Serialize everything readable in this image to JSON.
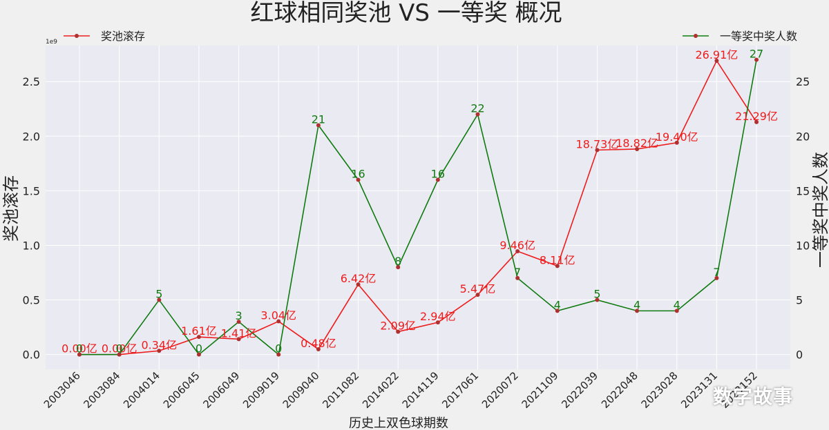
{
  "chart_data": {
    "type": "line",
    "title": "红球相同奖池 VS 一等奖 概况",
    "xlabel": "历史上双色球期数",
    "ylabel_left": "奖池滚存",
    "ylabel_right": "一等奖中奖人数",
    "left_axis_offset_label": "1e9",
    "categories": [
      "2003046",
      "2003084",
      "2004014",
      "2006045",
      "2006049",
      "2009019",
      "2009040",
      "2011082",
      "2014022",
      "2014119",
      "2017061",
      "2020072",
      "2021109",
      "2022039",
      "2022048",
      "2023028",
      "2023131",
      "2023152"
    ],
    "ylim_left": [
      -0.135,
      2.83
    ],
    "yticks_left": [
      "0.0",
      "0.5",
      "1.0",
      "1.5",
      "2.0",
      "2.5"
    ],
    "ylim_right": [
      -1.35,
      28.3
    ],
    "yticks_right": [
      "0",
      "5",
      "10",
      "15",
      "20",
      "25"
    ],
    "grid": true,
    "legend": {
      "left": "top-left",
      "right": "top-right"
    },
    "series": [
      {
        "name": "奖池滚存",
        "axis": "left",
        "color": "#ee1c1c",
        "values": [
          0.0,
          0.0,
          0.034,
          0.161,
          0.141,
          0.304,
          0.048,
          0.642,
          0.209,
          0.294,
          0.547,
          0.946,
          0.811,
          1.873,
          1.882,
          1.94,
          2.691,
          2.129
        ],
        "labels": [
          "0.00亿",
          "0.00亿",
          "0.34亿",
          "1.61亿",
          "1.41亿",
          "3.04亿",
          "0.48亿",
          "6.42亿",
          "2.09亿",
          "2.94亿",
          "5.47亿",
          "9.46亿",
          "8.11亿",
          "18.73亿",
          "18.82亿",
          "19.40亿",
          "26.91亿",
          "21.29亿"
        ]
      },
      {
        "name": "一等奖中奖人数",
        "axis": "right",
        "color": "#0f7a0f",
        "values": [
          0,
          0,
          5,
          0,
          3,
          0,
          21,
          16,
          8,
          16,
          22,
          7,
          4,
          5,
          4,
          4,
          7,
          27
        ],
        "labels": [
          "0",
          "0",
          "5",
          "0",
          "3",
          "0",
          "21",
          "16",
          "8",
          "16",
          "22",
          "7",
          "4",
          "5",
          "4",
          "4",
          "7",
          "27"
        ]
      }
    ]
  },
  "watermark": "数字故事"
}
